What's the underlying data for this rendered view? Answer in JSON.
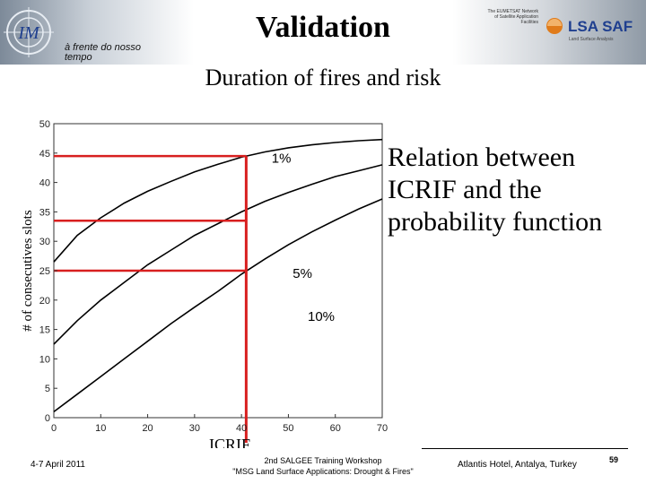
{
  "header": {
    "title": "Validation",
    "subtitle": "Duration of fires and risk",
    "tagline_line1": "à frente do nosso",
    "tagline_line2": "tempo",
    "saf_small_text": "The EUMETSAT Network of Satellite Application Facilities",
    "saf_logo_text": "LSA SAF",
    "saf_logo_subtext": "Land Surface Analysis",
    "im_logo_text": "IM"
  },
  "note": {
    "line1": "Relation between",
    "line2": "ICRIF and the",
    "line3": "probability function"
  },
  "chart_data": {
    "type": "line",
    "title": "",
    "xlabel": "ICRIF",
    "ylabel": "# of consecutives slots",
    "xlim": [
      0,
      70
    ],
    "ylim": [
      0,
      50
    ],
    "x_ticks": [
      0,
      10,
      20,
      30,
      40,
      50,
      60,
      70
    ],
    "y_ticks": [
      0,
      5,
      10,
      15,
      20,
      25,
      30,
      35,
      40,
      45,
      50
    ],
    "grid": false,
    "series": [
      {
        "name": "1%",
        "x": [
          0,
          5,
          10,
          15,
          20,
          25,
          30,
          35,
          40,
          45,
          50,
          55,
          60,
          65,
          70
        ],
        "y": [
          26.5,
          31,
          34,
          36.5,
          38.5,
          40.2,
          41.8,
          43.1,
          44.3,
          45.2,
          45.9,
          46.4,
          46.8,
          47.1,
          47.3
        ]
      },
      {
        "name": "5%",
        "x": [
          0,
          5,
          10,
          15,
          20,
          25,
          30,
          35,
          40,
          45,
          50,
          55,
          60,
          65,
          70
        ],
        "y": [
          12.5,
          16.5,
          20,
          23,
          26,
          28.5,
          31,
          33,
          35,
          36.8,
          38.3,
          39.7,
          41,
          42,
          43
        ]
      },
      {
        "name": "10%",
        "x": [
          0,
          5,
          10,
          15,
          20,
          25,
          30,
          35,
          40,
          45,
          50,
          55,
          60,
          65,
          70
        ],
        "y": [
          1,
          4,
          7,
          10,
          13,
          16,
          18.8,
          21.5,
          24.4,
          27,
          29.4,
          31.6,
          33.6,
          35.5,
          37.2
        ]
      }
    ],
    "labels": [
      {
        "text": "1%",
        "x": 48.5,
        "y": 43.4
      },
      {
        "text": "5%",
        "x": 53,
        "y": 23.8
      },
      {
        "text": "10%",
        "x": 57,
        "y": 16.5
      }
    ],
    "guides": {
      "color": "#d81f1f",
      "icrif": 41,
      "levels": [
        44.5,
        33.5,
        25
      ]
    }
  },
  "footer": {
    "date": "4-7 April 2011",
    "workshop_line1": "2nd SALGEE Training Workshop",
    "workshop_line2": "\"MSG Land Surface Applications: Drought & Fires\"",
    "venue": "Atlantis Hotel, Antalya, Turkey",
    "page": "59"
  }
}
